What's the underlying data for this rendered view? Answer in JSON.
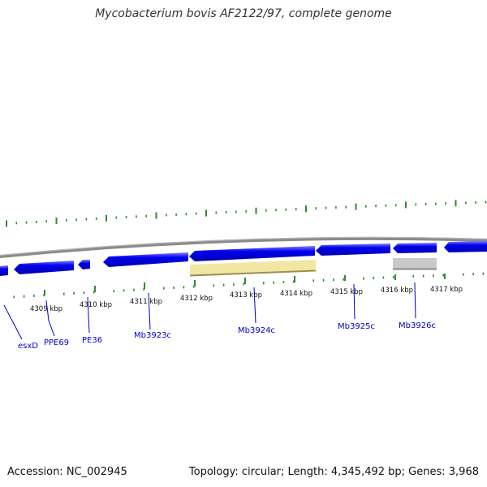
{
  "title": "Mycobacterium bovis AF2122/97, complete genome",
  "footer": {
    "accession": "Accession: NC_002945",
    "summary": "Topology: circular; Length: 4,345,492 bp; Genes: 3,968"
  },
  "ruler": {
    "ticks": [
      {
        "label": "4309 kbp"
      },
      {
        "label": "4310 kbp"
      },
      {
        "label": "4311 kbp"
      },
      {
        "label": "4312 kbp"
      },
      {
        "label": "4313 kbp"
      },
      {
        "label": "4314 kbp"
      },
      {
        "label": "4315 kbp"
      },
      {
        "label": "4316 kbp"
      },
      {
        "label": "4317 kbp"
      }
    ]
  },
  "genes": [
    {
      "label": "esxD"
    },
    {
      "label": "PPE69"
    },
    {
      "label": "PE36"
    },
    {
      "label": "Mb3923c"
    },
    {
      "label": "Mb3924c"
    },
    {
      "label": "Mb3925c"
    },
    {
      "label": "Mb3926c"
    }
  ],
  "colors": {
    "gene_fill": "#0000ee",
    "gene_highlight": "#6c6cff",
    "label": "#0000cc",
    "tick": "#2e8b2e",
    "backbone": "#888888",
    "feature_tan": "#f0e6a0",
    "feature_gray": "#c8c8c8"
  }
}
